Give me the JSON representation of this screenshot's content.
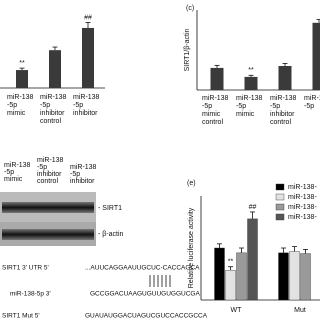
{
  "chart_data": [
    {
      "type": "bar",
      "categories": [
        [
          "miR-138",
          "-5p",
          "mimic"
        ],
        [
          "miR-138",
          "-5p",
          "inhibitor",
          "control"
        ],
        [
          "miR-138",
          "-5p",
          "inhibitor"
        ]
      ],
      "values": [
        0.46,
        0.97,
        1.54
      ],
      "errors": [
        0.05,
        0.08,
        0.14
      ],
      "annotations": [
        "**",
        null,
        "##"
      ],
      "color": "#3a3a3a",
      "ylim": [
        0,
        2
      ]
    },
    {
      "type": "bar",
      "label": "(c)",
      "ylabel": "SIRT1/β-actin",
      "categories": [
        [
          "miR-138",
          "-5p",
          "mimic",
          "control"
        ],
        [
          "miR-138",
          "-5p",
          "mimic"
        ],
        [
          "miR-138",
          "-5p",
          "inhibitor",
          "control"
        ],
        [
          "miR-138",
          "-5p"
        ]
      ],
      "values": [
        0.69,
        0.41,
        0.75,
        2.1
      ],
      "errors": [
        0.08,
        0.05,
        0.08,
        0.1
      ],
      "annotations": [
        null,
        "**",
        null,
        null
      ],
      "color": "#3a3a3a",
      "ylim": [
        0,
        2.5
      ]
    },
    {
      "type": "grouped-bar",
      "label": "(e)",
      "ylabel": "Relative luciferase activity",
      "categories": [
        "WT",
        "Mut"
      ],
      "series": [
        {
          "name": "miR-138-",
          "color": "#000000",
          "values": [
            0.75,
            0.68
          ],
          "errors": [
            0.06,
            0.07
          ],
          "annotations": [
            null,
            null
          ]
        },
        {
          "name": "miR-138-",
          "color": "#e2e2e2",
          "values": [
            0.43,
            0.7
          ],
          "errors": [
            0.05,
            0.07
          ],
          "annotations": [
            "**",
            null
          ]
        },
        {
          "name": "miR-138-",
          "color": "#9a9a9a",
          "values": [
            0.68,
            0.67
          ],
          "errors": [
            0.07,
            0.06
          ],
          "annotations": [
            null,
            null
          ]
        },
        {
          "name": "miR-138-",
          "color": "#555555",
          "values": [
            1.17,
            null
          ],
          "errors": [
            0.1,
            null
          ],
          "annotations": [
            "##",
            null
          ]
        }
      ],
      "ylim": [
        0,
        1.5
      ]
    }
  ],
  "blot": {
    "lanes": [
      [
        "miR-138",
        "-5p",
        "mimic"
      ],
      [
        "miR-138",
        "-5p",
        "inhibitor",
        "control"
      ],
      [
        "miR-138",
        "-5p",
        "inhibitor"
      ]
    ],
    "bands": [
      "- SIRT1",
      "- β-actin"
    ]
  },
  "sequences": [
    {
      "label": "SIRT1 3' UTR 5'",
      "seq": "...AUUCAGGAAUUGCUC-CACCAGCA"
    },
    {
      "label": "miR-138-5p 3'",
      "seq": "GCCGGACUAAGUGUUGUGGUCGA"
    },
    {
      "label": "SIRT1 Mut 5'",
      "seq": "GUAUAUGGACUAGUCGUCCACCGCCA"
    }
  ]
}
